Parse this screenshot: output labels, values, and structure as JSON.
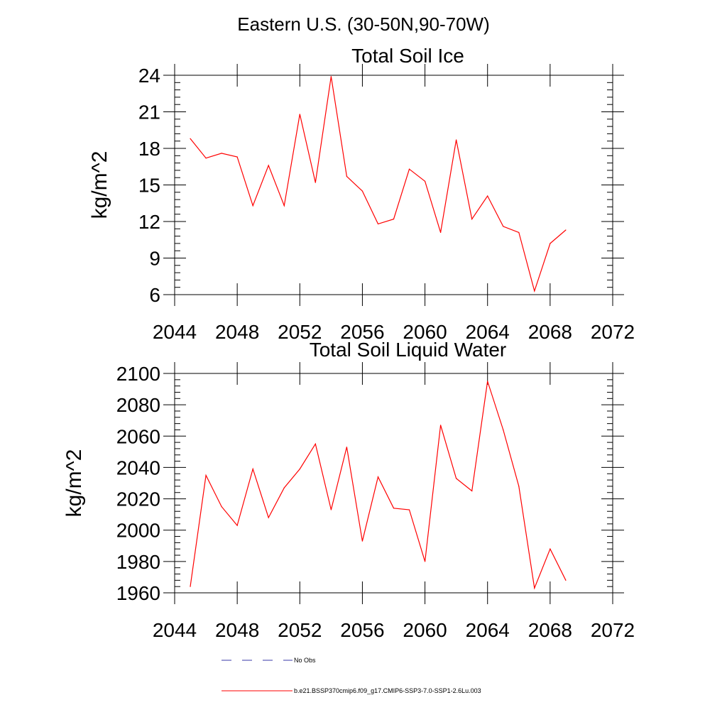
{
  "figure_title": "Eastern U.S. (30-50N,90-70W)",
  "legend": {
    "items": [
      {
        "label": "No Obs",
        "style": "dashed",
        "color": "#3a3aa8"
      },
      {
        "label": "b.e21.BSSP370cmip6.f09_g17.CMIP6-SSP3-7.0-SSP1-2.6Lu.003",
        "style": "solid",
        "color": "#ff0000"
      }
    ]
  },
  "chart_data": [
    {
      "type": "line",
      "title": "Total Soil Ice",
      "xlabel": "",
      "ylabel": "kg/m^2",
      "xlim": [
        2044,
        2072
      ],
      "ylim": [
        6,
        24
      ],
      "xticks": [
        2044,
        2048,
        2052,
        2056,
        2060,
        2064,
        2068,
        2072
      ],
      "yticks": [
        6,
        9,
        12,
        15,
        18,
        21,
        24
      ],
      "x": [
        2045,
        2046,
        2047,
        2048,
        2049,
        2050,
        2051,
        2052,
        2053,
        2054,
        2055,
        2056,
        2057,
        2058,
        2059,
        2060,
        2061,
        2062,
        2063,
        2064,
        2065,
        2066,
        2067,
        2068,
        2069
      ],
      "series": [
        {
          "color": "#ff0000",
          "values": [
            18.8,
            17.2,
            17.6,
            17.3,
            13.3,
            16.6,
            13.3,
            20.8,
            15.2,
            23.9,
            15.7,
            14.5,
            11.8,
            12.2,
            16.3,
            15.3,
            11.1,
            18.7,
            12.2,
            14.1,
            11.6,
            11.1,
            6.3,
            10.2,
            11.3
          ]
        }
      ]
    },
    {
      "type": "line",
      "title": "Total Soil Liquid Water",
      "xlabel": "",
      "ylabel": "kg/m^2",
      "xlim": [
        2044,
        2072
      ],
      "ylim": [
        1960,
        2100
      ],
      "xticks": [
        2044,
        2048,
        2052,
        2056,
        2060,
        2064,
        2068,
        2072
      ],
      "yticks": [
        1960,
        1980,
        2000,
        2020,
        2040,
        2060,
        2080,
        2100
      ],
      "x": [
        2045,
        2046,
        2047,
        2048,
        2049,
        2050,
        2051,
        2052,
        2053,
        2054,
        2055,
        2056,
        2057,
        2058,
        2059,
        2060,
        2061,
        2062,
        2063,
        2064,
        2065,
        2066,
        2067,
        2068,
        2069
      ],
      "series": [
        {
          "color": "#ff0000",
          "values": [
            1964,
            2035,
            2015,
            2003,
            2039,
            2008,
            2027,
            2039,
            2055,
            2013,
            2053,
            1993,
            2034,
            2014,
            2013,
            1980,
            2067,
            2033,
            2025,
            2095,
            2064,
            2028,
            1963,
            1988,
            1968
          ]
        }
      ]
    }
  ]
}
